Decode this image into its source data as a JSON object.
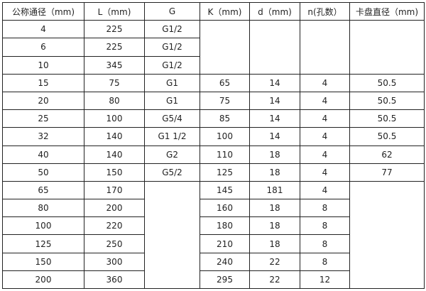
{
  "table": {
    "headers": [
      "公称通径（mm)",
      "L（mm)",
      "G",
      "K（mm)",
      "d（mm)",
      "n(孔数）",
      "卡盘直径（mm)"
    ],
    "rows": [
      [
        "4",
        "225",
        "G1/2",
        "",
        "",
        "",
        ""
      ],
      [
        "6",
        "225",
        "G1/2",
        null,
        null,
        null,
        null
      ],
      [
        "10",
        "345",
        "G1/2",
        null,
        null,
        null,
        null
      ],
      [
        "15",
        "75",
        "G1",
        "65",
        "14",
        "4",
        "50.5"
      ],
      [
        "20",
        "80",
        "G1",
        "75",
        "14",
        "4",
        "50.5"
      ],
      [
        "25",
        "100",
        "G5/4",
        "85",
        "14",
        "4",
        "50.5"
      ],
      [
        "32",
        "140",
        "G1  1/2",
        "100",
        "14",
        "4",
        "50.5"
      ],
      [
        "40",
        "140",
        "G2",
        "110",
        "18",
        "4",
        "62"
      ],
      [
        "50",
        "150",
        "G5/2",
        "125",
        "18",
        "4",
        "77"
      ],
      [
        "65",
        "170",
        "",
        "145",
        "181",
        "4",
        ""
      ],
      [
        "80",
        "200",
        null,
        "160",
        "18",
        "8",
        null
      ],
      [
        "100",
        "220",
        null,
        "180",
        "18",
        "8",
        null
      ],
      [
        "125",
        "250",
        null,
        "210",
        "18",
        "8",
        null
      ],
      [
        "150",
        "300",
        null,
        "240",
        "22",
        "8",
        null
      ],
      [
        "200",
        "360",
        null,
        "295",
        "22",
        "12",
        null
      ]
    ]
  }
}
